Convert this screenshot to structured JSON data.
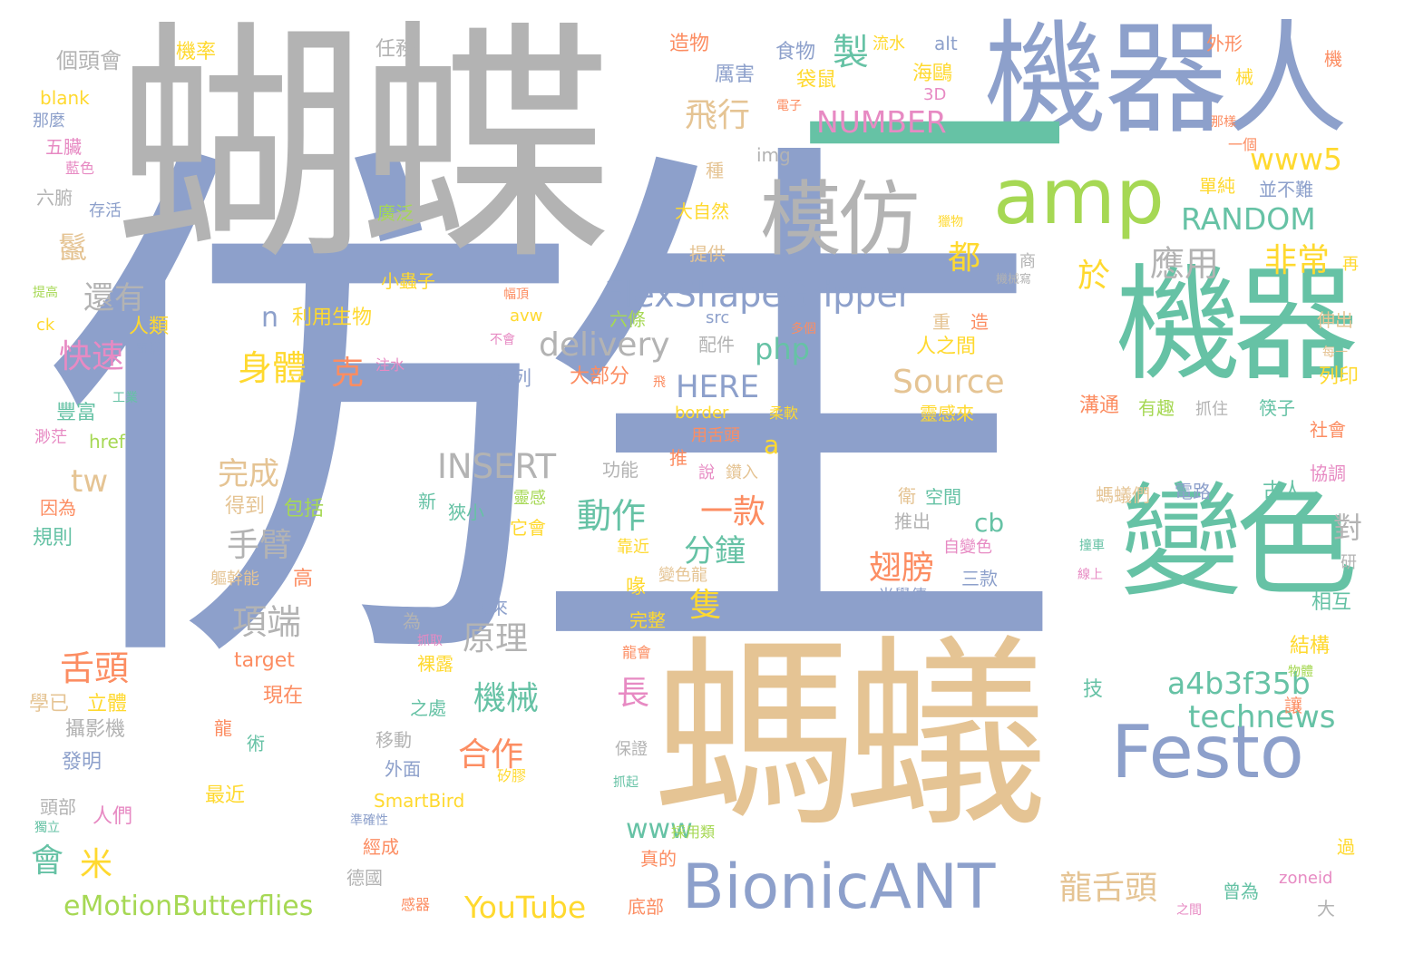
{
  "colors": {
    "slate": "#8da0cb",
    "gray": "#b3b3b3",
    "teal": "#66c2a5",
    "tan": "#e5c494",
    "lime": "#a6d854",
    "yellow": "#ffd92f",
    "orange": "#fc8d62",
    "pink": "#e78ac3"
  },
  "words": [
    {
      "text": "仿生",
      "color": "slate"
    },
    {
      "text": "蝴蝶",
      "color": "gray"
    },
    {
      "text": "螞蟻",
      "color": "tan"
    },
    {
      "text": "機器人",
      "color": "slate"
    },
    {
      "text": "機器",
      "color": "teal"
    },
    {
      "text": "一",
      "color": "teal"
    },
    {
      "text": "變色",
      "color": "teal"
    },
    {
      "text": "amp",
      "color": "lime"
    },
    {
      "text": "模仿",
      "color": "gray"
    },
    {
      "text": "Festo",
      "color": "slate"
    },
    {
      "text": "BionicANT",
      "color": "slate"
    },
    {
      "text": "FlexShapeGripper",
      "color": "slate"
    },
    {
      "text": "eMotionButterflies",
      "color": "lime"
    },
    {
      "text": "NUMBER",
      "color": "pink"
    },
    {
      "text": "RANDOM",
      "color": "teal"
    },
    {
      "text": "INSERT",
      "color": "gray"
    },
    {
      "text": "delivery",
      "color": "gray"
    },
    {
      "text": "Source",
      "color": "tan"
    },
    {
      "text": "HERE",
      "color": "slate"
    },
    {
      "text": "a4b3f35b",
      "color": "teal"
    },
    {
      "text": "technews",
      "color": "teal"
    },
    {
      "text": "YouTube",
      "color": "yellow"
    },
    {
      "text": "www5",
      "color": "yellow"
    },
    {
      "text": "php",
      "color": "teal"
    },
    {
      "text": "www",
      "color": "teal"
    },
    {
      "text": "飛行",
      "color": "tan"
    },
    {
      "text": "製",
      "color": "teal"
    },
    {
      "text": "應用",
      "color": "gray"
    },
    {
      "text": "非常",
      "color": "yellow"
    },
    {
      "text": "都",
      "color": "yellow"
    },
    {
      "text": "於",
      "color": "yellow"
    },
    {
      "text": "身體",
      "color": "yellow"
    },
    {
      "text": "克",
      "color": "orange"
    },
    {
      "text": "完成",
      "color": "tan"
    },
    {
      "text": "手臂",
      "color": "gray"
    },
    {
      "text": "項端",
      "color": "gray"
    },
    {
      "text": "原理",
      "color": "gray"
    },
    {
      "text": "舌頭",
      "color": "orange"
    },
    {
      "text": "機械",
      "color": "teal"
    },
    {
      "text": "合作",
      "color": "orange"
    },
    {
      "text": "動作",
      "color": "teal"
    },
    {
      "text": "一款",
      "color": "orange"
    },
    {
      "text": "分鐘",
      "color": "teal"
    },
    {
      "text": "隻",
      "color": "yellow"
    },
    {
      "text": "長",
      "color": "pink"
    },
    {
      "text": "還有",
      "color": "gray"
    },
    {
      "text": "快速",
      "color": "pink"
    },
    {
      "text": "鬣",
      "color": "tan"
    },
    {
      "text": "翅膀",
      "color": "orange"
    },
    {
      "text": "龍舌頭",
      "color": "tan"
    },
    {
      "text": "會",
      "color": "teal"
    },
    {
      "text": "米",
      "color": "yellow"
    },
    {
      "text": "tw",
      "color": "tan"
    },
    {
      "text": "a",
      "color": "yellow"
    },
    {
      "text": "n",
      "color": "slate"
    },
    {
      "text": "cb",
      "color": "teal"
    },
    {
      "text": "對",
      "color": "gray"
    },
    {
      "text": "個頭會",
      "color": "gray"
    },
    {
      "text": "機率",
      "color": "yellow"
    },
    {
      "text": "任務",
      "color": "gray"
    },
    {
      "text": "造物",
      "color": "orange"
    },
    {
      "text": "食物",
      "color": "slate"
    },
    {
      "text": "流水",
      "color": "yellow"
    },
    {
      "text": "alt",
      "color": "slate"
    },
    {
      "text": "外形",
      "color": "orange"
    },
    {
      "text": "機",
      "color": "orange"
    },
    {
      "text": "blank",
      "color": "yellow"
    },
    {
      "text": "厲害",
      "color": "slate"
    },
    {
      "text": "海鷗",
      "color": "yellow"
    },
    {
      "text": "械",
      "color": "yellow"
    },
    {
      "text": "那麼",
      "color": "slate"
    },
    {
      "text": "袋鼠",
      "color": "yellow"
    },
    {
      "text": "3D",
      "color": "pink"
    },
    {
      "text": "電子",
      "color": "orange"
    },
    {
      "text": "那樣",
      "color": "orange"
    },
    {
      "text": "五臟",
      "color": "pink"
    },
    {
      "text": "一個",
      "color": "orange"
    },
    {
      "text": "藍色",
      "color": "pink"
    },
    {
      "text": "種",
      "color": "tan"
    },
    {
      "text": "img",
      "color": "gray"
    },
    {
      "text": "單純",
      "color": "yellow"
    },
    {
      "text": "六腑",
      "color": "gray"
    },
    {
      "text": "存活",
      "color": "slate"
    },
    {
      "text": "廣泛",
      "color": "lime"
    },
    {
      "text": "大自然",
      "color": "yellow"
    },
    {
      "text": "並不難",
      "color": "slate"
    },
    {
      "text": "獵物",
      "color": "yellow"
    },
    {
      "text": "提供",
      "color": "tan"
    },
    {
      "text": "商",
      "color": "gray"
    },
    {
      "text": "再",
      "color": "yellow"
    },
    {
      "text": "提高",
      "color": "lime"
    },
    {
      "text": "小蟲子",
      "color": "yellow"
    },
    {
      "text": "機械寫",
      "color": "gray"
    },
    {
      "text": "幅頂",
      "color": "orange"
    },
    {
      "text": "利用生物",
      "color": "yellow"
    },
    {
      "text": "avw",
      "color": "yellow"
    },
    {
      "text": "六條",
      "color": "lime"
    },
    {
      "text": "src",
      "color": "slate"
    },
    {
      "text": "重",
      "color": "tan"
    },
    {
      "text": "造",
      "color": "orange"
    },
    {
      "text": "伸出",
      "color": "tan"
    },
    {
      "text": "ck",
      "color": "yellow"
    },
    {
      "text": "人類",
      "color": "yellow"
    },
    {
      "text": "靈活",
      "color": "slate"
    },
    {
      "text": "不會",
      "color": "pink"
    },
    {
      "text": "配件",
      "color": "gray"
    },
    {
      "text": "多個",
      "color": "orange"
    },
    {
      "text": "人之間",
      "color": "yellow"
    },
    {
      "text": "每一",
      "color": "tan"
    },
    {
      "text": "注水",
      "color": "pink"
    },
    {
      "text": "一系列",
      "color": "slate"
    },
    {
      "text": "大部分",
      "color": "orange"
    },
    {
      "text": "飛",
      "color": "orange"
    },
    {
      "text": "列印",
      "color": "yellow"
    },
    {
      "text": "豐富",
      "color": "teal"
    },
    {
      "text": "工業",
      "color": "teal"
    },
    {
      "text": "border",
      "color": "yellow"
    },
    {
      "text": "柔軟",
      "color": "yellow"
    },
    {
      "text": "溝通",
      "color": "orange"
    },
    {
      "text": "有趣",
      "color": "lime"
    },
    {
      "text": "抓住",
      "color": "gray"
    },
    {
      "text": "筷子",
      "color": "teal"
    },
    {
      "text": "社會",
      "color": "orange"
    },
    {
      "text": "渺茫",
      "color": "pink"
    },
    {
      "text": "href",
      "color": "lime"
    },
    {
      "text": "用舌頭",
      "color": "orange"
    },
    {
      "text": "靈感來",
      "color": "yellow"
    },
    {
      "text": "功能",
      "color": "gray"
    },
    {
      "text": "推",
      "color": "orange"
    },
    {
      "text": "說",
      "color": "pink"
    },
    {
      "text": "鑽入",
      "color": "tan"
    },
    {
      "text": "協調",
      "color": "pink"
    },
    {
      "text": "因為",
      "color": "orange"
    },
    {
      "text": "得到",
      "color": "tan"
    },
    {
      "text": "包括",
      "color": "lime"
    },
    {
      "text": "新",
      "color": "teal"
    },
    {
      "text": "狹小",
      "color": "teal"
    },
    {
      "text": "靈感",
      "color": "lime"
    },
    {
      "text": "它會",
      "color": "yellow"
    },
    {
      "text": "衛",
      "color": "tan"
    },
    {
      "text": "空間",
      "color": "teal"
    },
    {
      "text": "螞蟻們",
      "color": "tan"
    },
    {
      "text": "電路",
      "color": "slate"
    },
    {
      "text": "古人",
      "color": "teal"
    },
    {
      "text": "規則",
      "color": "teal"
    },
    {
      "text": "靠近",
      "color": "yellow"
    },
    {
      "text": "推出",
      "color": "gray"
    },
    {
      "text": "自變色",
      "color": "pink"
    },
    {
      "text": "撞車",
      "color": "teal"
    },
    {
      "text": "軀幹能",
      "color": "tan"
    },
    {
      "text": "高",
      "color": "orange"
    },
    {
      "text": "變色龍",
      "color": "tan"
    },
    {
      "text": "光學傳",
      "color": "slate"
    },
    {
      "text": "三款",
      "color": "slate"
    },
    {
      "text": "線上",
      "color": "pink"
    },
    {
      "text": "研",
      "color": "gray"
    },
    {
      "text": "喙",
      "color": "yellow"
    },
    {
      "text": "人來",
      "color": "slate"
    },
    {
      "text": "為",
      "color": "gray"
    },
    {
      "text": "相互",
      "color": "teal"
    },
    {
      "text": "完整",
      "color": "yellow"
    },
    {
      "text": "抓取",
      "color": "pink"
    },
    {
      "text": "target",
      "color": "orange"
    },
    {
      "text": "裸露",
      "color": "yellow"
    },
    {
      "text": "龍會",
      "color": "orange"
    },
    {
      "text": "物體",
      "color": "lime"
    },
    {
      "text": "結構",
      "color": "yellow"
    },
    {
      "text": "學已",
      "color": "tan"
    },
    {
      "text": "立體",
      "color": "yellow"
    },
    {
      "text": "現在",
      "color": "orange"
    },
    {
      "text": "之處",
      "color": "teal"
    },
    {
      "text": "技",
      "color": "teal"
    },
    {
      "text": "讓",
      "color": "orange"
    },
    {
      "text": "攝影機",
      "color": "gray"
    },
    {
      "text": "龍",
      "color": "orange"
    },
    {
      "text": "術",
      "color": "teal"
    },
    {
      "text": "移動",
      "color": "gray"
    },
    {
      "text": "保證",
      "color": "gray"
    },
    {
      "text": "發明",
      "color": "slate"
    },
    {
      "text": "外面",
      "color": "slate"
    },
    {
      "text": "矽膠",
      "color": "yellow"
    },
    {
      "text": "抓起",
      "color": "teal"
    },
    {
      "text": "最近",
      "color": "yellow"
    },
    {
      "text": "頭部",
      "color": "gray"
    },
    {
      "text": "SmartBird",
      "color": "yellow"
    },
    {
      "text": "人們",
      "color": "pink"
    },
    {
      "text": "獨立",
      "color": "teal"
    },
    {
      "text": "準確性",
      "color": "slate"
    },
    {
      "text": "採用類",
      "color": "lime"
    },
    {
      "text": "經成",
      "color": "orange"
    },
    {
      "text": "真的",
      "color": "orange"
    },
    {
      "text": "過",
      "color": "yellow"
    },
    {
      "text": "德國",
      "color": "gray"
    },
    {
      "text": "zoneid",
      "color": "pink"
    },
    {
      "text": "感器",
      "color": "orange"
    },
    {
      "text": "底部",
      "color": "orange"
    },
    {
      "text": "曾為",
      "color": "teal"
    },
    {
      "text": "之間",
      "color": "pink"
    },
    {
      "text": "大",
      "color": "gray"
    }
  ]
}
